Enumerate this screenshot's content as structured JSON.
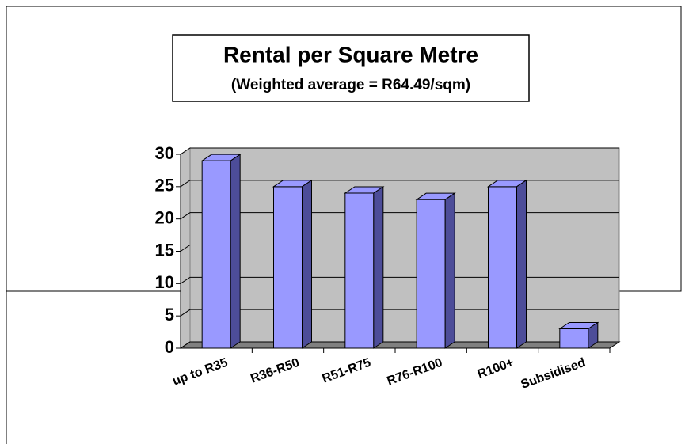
{
  "chart_data": {
    "type": "bar",
    "title": "Rental per Square Metre",
    "subtitle": "(Weighted average = R64.49/sqm)",
    "categories": [
      "up to R35",
      "R36-R50",
      "R51-R75",
      "R76-R100",
      "R100+",
      "Subsidised"
    ],
    "values": [
      29,
      25,
      24,
      23,
      25,
      3
    ],
    "color": "#9999ff",
    "ylim": [
      0,
      30
    ],
    "yticks": [
      0,
      5,
      10,
      15,
      20,
      25,
      30
    ],
    "grid": true
  }
}
